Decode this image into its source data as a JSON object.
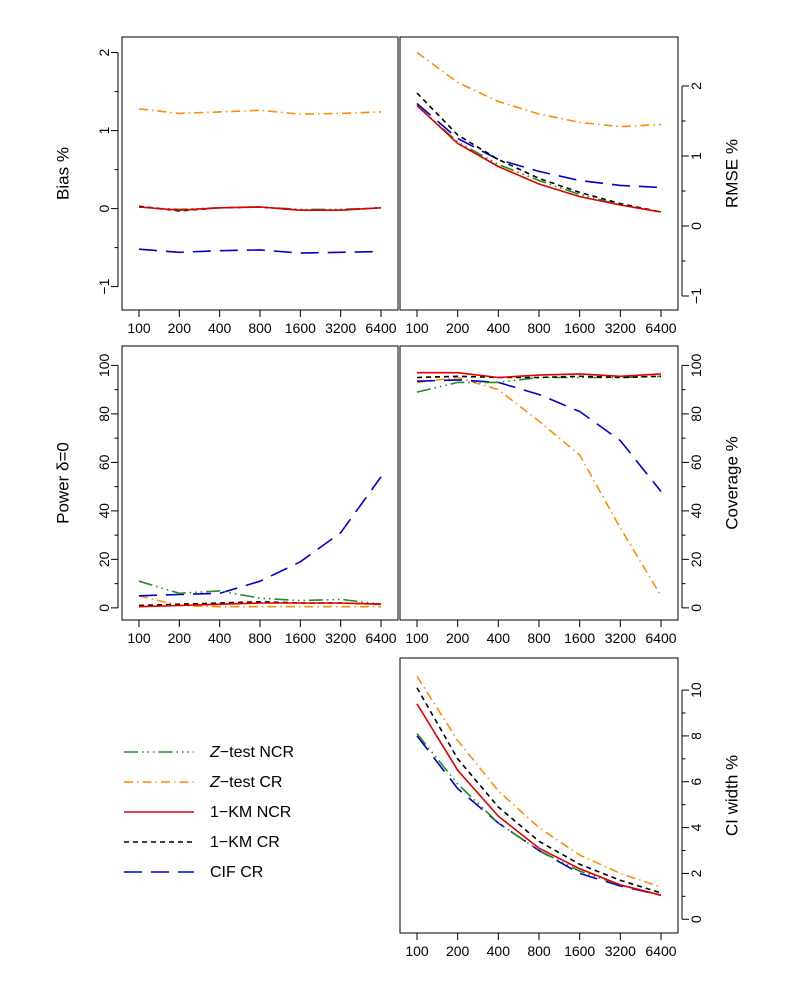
{
  "x_ticks": [
    "100",
    "200",
    "400",
    "800",
    "1600",
    "3200",
    "6400"
  ],
  "colors": {
    "ztest_ncr": "#228B22",
    "ztest_cr": "#FF8C00",
    "km_ncr": "#E00000",
    "km_cr": "#000000",
    "cif_cr": "#0000CD"
  },
  "legend": [
    {
      "key": "ztest_ncr",
      "italic": "Z",
      "label": "−test NCR"
    },
    {
      "key": "ztest_cr",
      "italic": "Z",
      "label": "−test  CR"
    },
    {
      "key": "km_ncr",
      "italic": "",
      "label": "1−KM NCR"
    },
    {
      "key": "km_cr",
      "italic": "",
      "label": "1−KM CR"
    },
    {
      "key": "cif_cr",
      "italic": "",
      "label": "CIF CR"
    }
  ],
  "chart_data": [
    {
      "id": "bias",
      "type": "line",
      "title": "",
      "ylabel": "Bias %",
      "xlabel": "",
      "categories": [
        "100",
        "200",
        "400",
        "800",
        "1600",
        "3200",
        "6400"
      ],
      "ylim": [
        -1.3,
        2.2
      ],
      "yticks": [
        -1,
        0,
        1,
        2
      ],
      "y_axis": "left",
      "series": [
        {
          "key": "ztest_ncr",
          "name": "Z-test NCR",
          "values": [
            0.02,
            -0.01,
            0.01,
            0.02,
            -0.01,
            -0.01,
            0.01
          ]
        },
        {
          "key": "ztest_cr",
          "name": "Z-test CR",
          "values": [
            1.28,
            1.22,
            1.24,
            1.26,
            1.21,
            1.22,
            1.24
          ]
        },
        {
          "key": "km_ncr",
          "name": "1-KM NCR",
          "values": [
            0.02,
            -0.02,
            0.01,
            0.02,
            -0.02,
            -0.02,
            0.01
          ]
        },
        {
          "key": "km_cr",
          "name": "1-KM CR",
          "values": [
            0.03,
            -0.03,
            0.01,
            0.02,
            -0.02,
            -0.02,
            0.01
          ]
        },
        {
          "key": "cif_cr",
          "name": "CIF CR",
          "values": [
            -0.52,
            -0.56,
            -0.54,
            -0.53,
            -0.57,
            -0.56,
            -0.55
          ]
        }
      ]
    },
    {
      "id": "rmse",
      "type": "line",
      "title": "",
      "ylabel": "RMSE %",
      "xlabel": "",
      "categories": [
        "100",
        "200",
        "400",
        "800",
        "1600",
        "3200",
        "6400"
      ],
      "ylim": [
        -1.2,
        2.7
      ],
      "yticks": [
        -1,
        0,
        1,
        2
      ],
      "y_axis": "right",
      "series": [
        {
          "key": "ztest_ncr",
          "name": "Z-test NCR",
          "values": [
            1.72,
            1.2,
            0.88,
            0.65,
            0.45,
            0.3,
            0.2
          ]
        },
        {
          "key": "ztest_cr",
          "name": "Z-test CR",
          "values": [
            2.48,
            2.05,
            1.78,
            1.6,
            1.48,
            1.42,
            1.45
          ]
        },
        {
          "key": "km_ncr",
          "name": "1-KM NCR",
          "values": [
            1.72,
            1.18,
            0.85,
            0.6,
            0.42,
            0.3,
            0.2
          ]
        },
        {
          "key": "km_cr",
          "name": "1-KM CR",
          "values": [
            1.9,
            1.3,
            0.95,
            0.68,
            0.48,
            0.32,
            0.2
          ]
        },
        {
          "key": "cif_cr",
          "name": "CIF CR",
          "values": [
            1.75,
            1.25,
            0.95,
            0.78,
            0.65,
            0.58,
            0.55
          ]
        }
      ]
    },
    {
      "id": "power",
      "type": "line",
      "title": "",
      "ylabel": "Power δ=0",
      "xlabel": "",
      "categories": [
        "100",
        "200",
        "400",
        "800",
        "1600",
        "3200",
        "6400"
      ],
      "ylim": [
        -5,
        108
      ],
      "yticks": [
        0,
        20,
        40,
        60,
        80,
        100
      ],
      "y_axis": "left",
      "series": [
        {
          "key": "ztest_ncr",
          "name": "Z-test NCR",
          "values": [
            11,
            6,
            7,
            4,
            3,
            3.5,
            1.5
          ]
        },
        {
          "key": "ztest_cr",
          "name": "Z-test CR",
          "values": [
            5,
            1,
            0.5,
            0.5,
            0.5,
            0.5,
            0.5
          ]
        },
        {
          "key": "km_ncr",
          "name": "1-KM NCR",
          "values": [
            0.5,
            1,
            1.5,
            2,
            2,
            2,
            1.5
          ]
        },
        {
          "key": "km_cr",
          "name": "1-KM CR",
          "values": [
            1,
            1.5,
            2,
            2.5,
            2,
            2,
            1.5
          ]
        },
        {
          "key": "cif_cr",
          "name": "CIF CR",
          "values": [
            5,
            5.5,
            6,
            11,
            19,
            31,
            54
          ]
        }
      ]
    },
    {
      "id": "coverage",
      "type": "line",
      "title": "",
      "ylabel": "Coverage %",
      "xlabel": "",
      "categories": [
        "100",
        "200",
        "400",
        "800",
        "1600",
        "3200",
        "6400"
      ],
      "ylim": [
        -5,
        108
      ],
      "yticks": [
        0,
        20,
        40,
        60,
        80,
        100
      ],
      "y_axis": "right",
      "series": [
        {
          "key": "ztest_ncr",
          "name": "Z-test NCR",
          "values": [
            89,
            93,
            93,
            95,
            95,
            95,
            95.5
          ]
        },
        {
          "key": "ztest_cr",
          "name": "Z-test CR",
          "values": [
            93,
            95,
            90,
            77,
            63,
            33,
            5
          ]
        },
        {
          "key": "km_ncr",
          "name": "1-KM NCR",
          "values": [
            97,
            97,
            95,
            96,
            96.5,
            95.5,
            96.5
          ]
        },
        {
          "key": "km_cr",
          "name": "1-KM CR",
          "values": [
            95,
            95.5,
            95,
            95,
            95.5,
            95,
            95.5
          ]
        },
        {
          "key": "cif_cr",
          "name": "CIF CR",
          "values": [
            93.5,
            94,
            93,
            88,
            81,
            69,
            48
          ]
        }
      ]
    },
    {
      "id": "ciwidth",
      "type": "line",
      "title": "",
      "ylabel": "CI width %",
      "xlabel": "",
      "categories": [
        "100",
        "200",
        "400",
        "800",
        "1600",
        "3200",
        "6400"
      ],
      "ylim": [
        -0.6,
        11.4
      ],
      "yticks": [
        0,
        2,
        4,
        6,
        8,
        10
      ],
      "y_axis": "right",
      "series": [
        {
          "key": "ztest_ncr",
          "name": "Z-test NCR",
          "values": [
            8.1,
            5.9,
            4.2,
            3.0,
            2.1,
            1.5,
            1.05
          ]
        },
        {
          "key": "ztest_cr",
          "name": "Z-test CR",
          "values": [
            10.6,
            7.8,
            5.6,
            4.0,
            2.8,
            2.0,
            1.4
          ]
        },
        {
          "key": "km_ncr",
          "name": "1-KM NCR",
          "values": [
            9.4,
            6.5,
            4.5,
            3.1,
            2.2,
            1.5,
            1.05
          ]
        },
        {
          "key": "km_cr",
          "name": "1-KM CR",
          "values": [
            10.1,
            7.0,
            4.9,
            3.4,
            2.4,
            1.7,
            1.15
          ]
        },
        {
          "key": "cif_cr",
          "name": "CIF CR",
          "values": [
            8.0,
            5.7,
            4.2,
            3.0,
            2.0,
            1.45,
            1.05
          ]
        }
      ]
    }
  ]
}
